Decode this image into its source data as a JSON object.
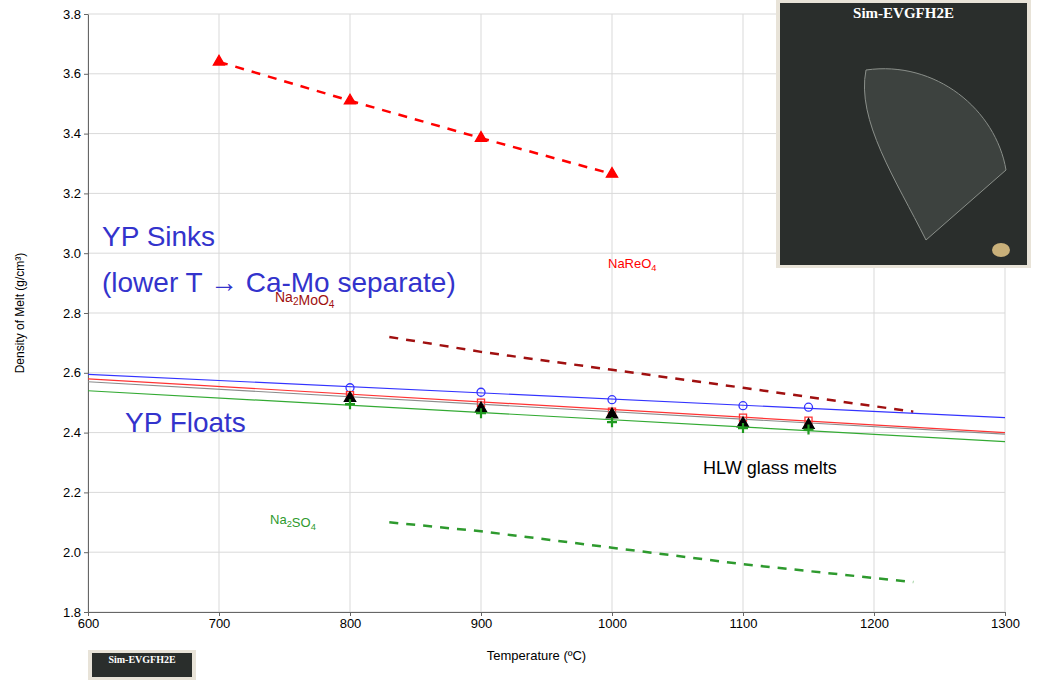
{
  "chart_data": {
    "type": "line",
    "xlabel": "Temperature (ºC)",
    "ylabel": "Density of Melt (g/cm³)",
    "xlim": [
      600,
      1300
    ],
    "xticks": [
      600,
      700,
      800,
      900,
      1000,
      1100,
      1200,
      1300
    ],
    "ylim": [
      1.8,
      3.8
    ],
    "yticks": [
      1.8,
      {
        "value": 2,
        "label": "2.0"
      },
      2.2,
      2.4,
      2.6,
      2.8,
      {
        "value": 3,
        "label": "3.0"
      },
      3.2,
      3.4,
      3.6,
      3.8
    ],
    "grid": true,
    "annotations": [
      "YP Sinks",
      "(lower T → Ca-Mo separate)",
      "YP Floats",
      "HLW glass melts"
    ],
    "photos": [
      "Sim-EVGFH2E",
      "Sim-EVGFH2E"
    ],
    "series": [
      {
        "name": "NaReO4",
        "type": "line",
        "color": "#ff0000",
        "line_style": "dashed",
        "marker": "triangle",
        "x": [
          700,
          800,
          900,
          1000
        ],
        "values": [
          3.64,
          3.51,
          3.385,
          3.265
        ]
      },
      {
        "name": "Na2MoO4",
        "type": "line",
        "color": "#a01010",
        "line_style": "dashed",
        "marker": "none",
        "x": [
          830,
          900,
          1000,
          1100,
          1230
        ],
        "values": [
          2.72,
          2.67,
          2.61,
          2.55,
          2.47
        ]
      },
      {
        "name": "Na2SO4",
        "type": "line",
        "color": "#2e9a2e",
        "line_style": "dashed",
        "marker": "none",
        "x": [
          830,
          900,
          1000,
          1100,
          1230
        ],
        "values": [
          2.1,
          2.07,
          2.015,
          1.96,
          1.9
        ]
      },
      {
        "type": "line",
        "color": "#3333ff",
        "line_style": "solid",
        "marker": "none",
        "x": [
          600,
          1300
        ],
        "values": [
          2.595,
          2.45
        ]
      },
      {
        "type": "scatter",
        "color": "#3333ff",
        "line_style": "none",
        "marker": "circle-open",
        "x": [
          800,
          900,
          1000,
          1100,
          1150
        ],
        "values": [
          2.55,
          2.535,
          2.51,
          2.49,
          2.485
        ]
      },
      {
        "type": "line",
        "color": "#ff3333",
        "line_style": "solid",
        "marker": "none",
        "x": [
          600,
          1300
        ],
        "values": [
          2.58,
          2.4
        ]
      },
      {
        "type": "scatter",
        "color": "#ff3333",
        "line_style": "none",
        "marker": "square-open",
        "x": [
          800,
          900,
          1000,
          1100,
          1150
        ],
        "values": [
          2.525,
          2.5,
          2.47,
          2.45,
          2.44
        ]
      },
      {
        "type": "line",
        "color": "#8c8c8c",
        "line_style": "solid",
        "marker": "none",
        "x": [
          600,
          1300
        ],
        "values": [
          2.57,
          2.395
        ]
      },
      {
        "type": "scatter",
        "color": "#000000",
        "line_style": "none",
        "marker": "triangle",
        "x": [
          800,
          900,
          1000,
          1100,
          1150
        ],
        "values": [
          2.515,
          2.48,
          2.46,
          2.43,
          2.425
        ]
      },
      {
        "type": "line",
        "color": "#33aa33",
        "line_style": "solid",
        "marker": "none",
        "x": [
          600,
          1300
        ],
        "values": [
          2.54,
          2.37
        ]
      },
      {
        "type": "scatter",
        "color": "#1f9a1f",
        "line_style": "none",
        "marker": "plus",
        "x": [
          800,
          900,
          1000,
          1100,
          1150
        ],
        "values": [
          2.495,
          2.465,
          2.435,
          2.415,
          2.41
        ]
      }
    ]
  }
}
